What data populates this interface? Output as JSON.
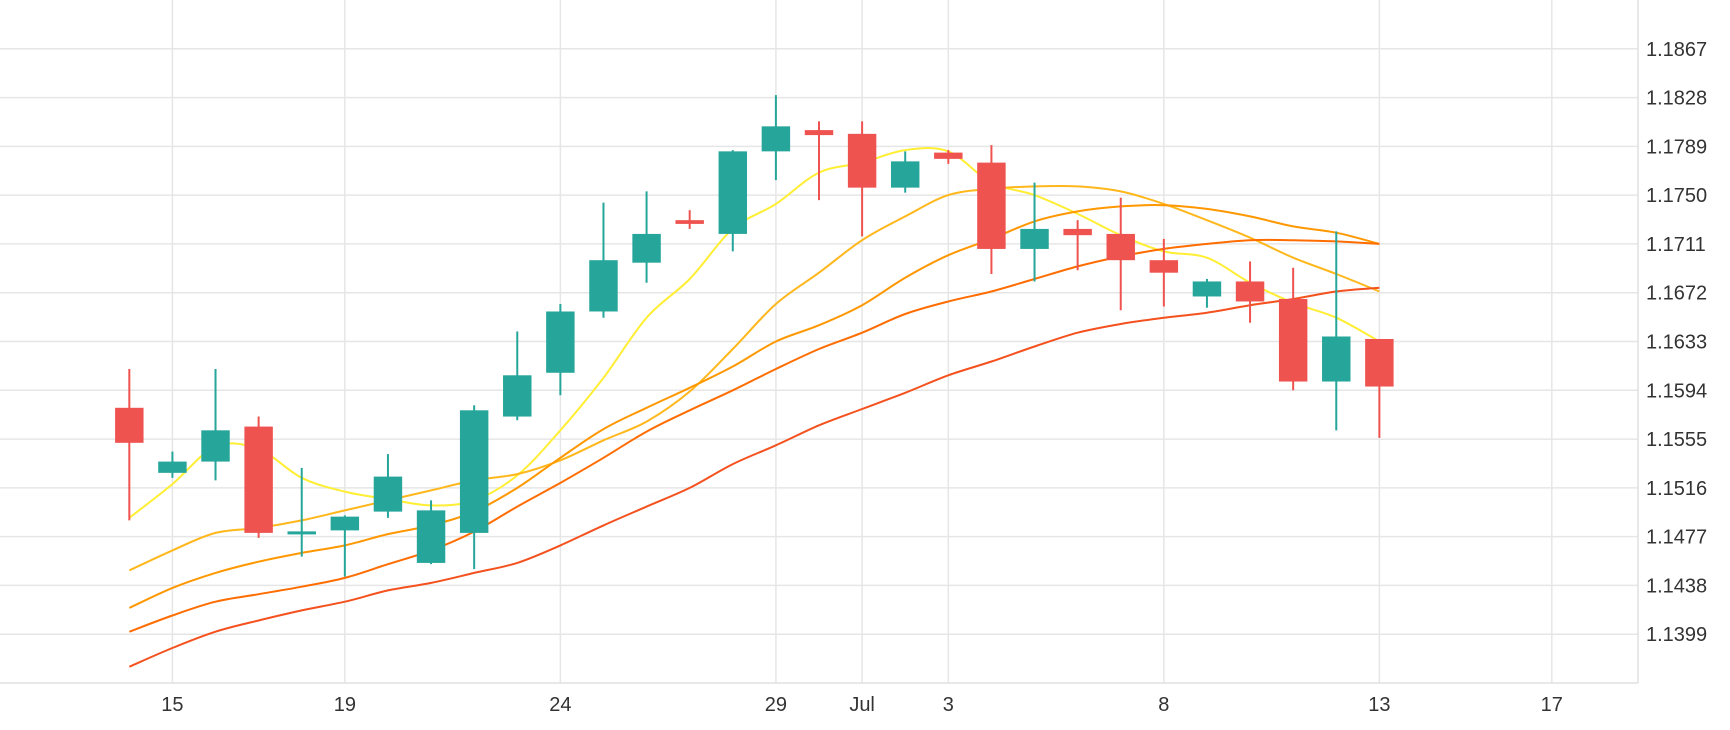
{
  "chart_data": {
    "type": "candlestick",
    "title": "",
    "xlabel": "",
    "ylabel": "",
    "x_tick_labels": [
      {
        "label": "15",
        "date": "2025-06-15"
      },
      {
        "label": "19",
        "date": "2025-06-19"
      },
      {
        "label": "24",
        "date": "2025-06-24"
      },
      {
        "label": "29",
        "date": "2025-06-29"
      },
      {
        "label": "Jul",
        "date": "2025-07-01"
      },
      {
        "label": "3",
        "date": "2025-07-03"
      },
      {
        "label": "8",
        "date": "2025-07-08"
      },
      {
        "label": "13",
        "date": "2025-07-13"
      },
      {
        "label": "17",
        "date": "2025-07-17"
      }
    ],
    "y_tick_labels": [
      "1.1867",
      "1.1828",
      "1.1789",
      "1.1750",
      "1.1711",
      "1.1672",
      "1.1633",
      "1.1594",
      "1.1555",
      "1.1516",
      "1.1477",
      "1.1438",
      "1.1399"
    ],
    "ylim": [
      1.136,
      1.1906
    ],
    "xlim": [
      "2025-06-11",
      "2025-07-19"
    ],
    "grid": true,
    "y_axis_position": "right",
    "colors": {
      "up": "#26a69a",
      "down": "#ef5350",
      "grid": "#e6e6e6",
      "text": "#333333"
    },
    "candles": [
      {
        "date": "2025-06-14",
        "open": 1.158,
        "high": 1.1611,
        "low": 1.149,
        "close": 1.1552
      },
      {
        "date": "2025-06-15",
        "open": 1.1528,
        "high": 1.1545,
        "low": 1.1524,
        "close": 1.1537
      },
      {
        "date": "2025-06-16",
        "open": 1.1537,
        "high": 1.1611,
        "low": 1.1522,
        "close": 1.1562
      },
      {
        "date": "2025-06-17",
        "open": 1.1565,
        "high": 1.1573,
        "low": 1.1476,
        "close": 1.148
      },
      {
        "date": "2025-06-18",
        "open": 1.148,
        "high": 1.1532,
        "low": 1.1461,
        "close": 1.148
      },
      {
        "date": "2025-06-19",
        "open": 1.1482,
        "high": 1.1494,
        "low": 1.1445,
        "close": 1.1493
      },
      {
        "date": "2025-06-20",
        "open": 1.1497,
        "high": 1.1543,
        "low": 1.1492,
        "close": 1.1525
      },
      {
        "date": "2025-06-21",
        "open": 1.1456,
        "high": 1.1506,
        "low": 1.1455,
        "close": 1.1498
      },
      {
        "date": "2025-06-22",
        "open": 1.148,
        "high": 1.1582,
        "low": 1.1451,
        "close": 1.1578
      },
      {
        "date": "2025-06-23",
        "open": 1.1573,
        "high": 1.1641,
        "low": 1.157,
        "close": 1.1606
      },
      {
        "date": "2025-06-24",
        "open": 1.1608,
        "high": 1.1663,
        "low": 1.159,
        "close": 1.1657
      },
      {
        "date": "2025-06-25",
        "open": 1.1657,
        "high": 1.1744,
        "low": 1.1652,
        "close": 1.1698
      },
      {
        "date": "2025-06-26",
        "open": 1.1696,
        "high": 1.1753,
        "low": 1.168,
        "close": 1.1719
      },
      {
        "date": "2025-06-27",
        "open": 1.173,
        "high": 1.1738,
        "low": 1.1723,
        "close": 1.1727
      },
      {
        "date": "2025-06-28",
        "open": 1.1719,
        "high": 1.1786,
        "low": 1.1705,
        "close": 1.1785
      },
      {
        "date": "2025-06-29",
        "open": 1.1785,
        "high": 1.183,
        "low": 1.1762,
        "close": 1.1805
      },
      {
        "date": "2025-06-30",
        "open": 1.1802,
        "high": 1.1809,
        "low": 1.1746,
        "close": 1.1798
      },
      {
        "date": "2025-07-01",
        "open": 1.1799,
        "high": 1.1809,
        "low": 1.1717,
        "close": 1.1756
      },
      {
        "date": "2025-07-02",
        "open": 1.1756,
        "high": 1.1785,
        "low": 1.1752,
        "close": 1.1777
      },
      {
        "date": "2025-07-03",
        "open": 1.1784,
        "high": 1.1786,
        "low": 1.1775,
        "close": 1.1779
      },
      {
        "date": "2025-07-04",
        "open": 1.1776,
        "high": 1.179,
        "low": 1.1687,
        "close": 1.1707
      },
      {
        "date": "2025-07-05",
        "open": 1.1707,
        "high": 1.176,
        "low": 1.1681,
        "close": 1.1723
      },
      {
        "date": "2025-07-06",
        "open": 1.1723,
        "high": 1.173,
        "low": 1.169,
        "close": 1.1718
      },
      {
        "date": "2025-07-07",
        "open": 1.1719,
        "high": 1.1748,
        "low": 1.1658,
        "close": 1.1698
      },
      {
        "date": "2025-07-08",
        "open": 1.1698,
        "high": 1.1715,
        "low": 1.1661,
        "close": 1.1688
      },
      {
        "date": "2025-07-09",
        "open": 1.1669,
        "high": 1.1683,
        "low": 1.166,
        "close": 1.1681
      },
      {
        "date": "2025-07-10",
        "open": 1.1681,
        "high": 1.1697,
        "low": 1.1648,
        "close": 1.1665
      },
      {
        "date": "2025-07-11",
        "open": 1.1667,
        "high": 1.1692,
        "low": 1.1594,
        "close": 1.1601
      },
      {
        "date": "2025-07-12",
        "open": 1.1601,
        "high": 1.1721,
        "low": 1.1562,
        "close": 1.1637
      },
      {
        "date": "2025-07-13",
        "open": 1.1635,
        "high": 1.1635,
        "low": 1.1556,
        "close": 1.1597
      }
    ],
    "moving_averages": [
      {
        "color": "#ffee33",
        "points": [
          [
            "2025-06-14",
            1.1492
          ],
          [
            "2025-06-15",
            1.1519
          ],
          [
            "2025-06-16",
            1.1549
          ],
          [
            "2025-06-17",
            1.1547
          ],
          [
            "2025-06-18",
            1.1524
          ],
          [
            "2025-06-19",
            1.1513
          ],
          [
            "2025-06-20",
            1.1507
          ],
          [
            "2025-06-21",
            1.1502
          ],
          [
            "2025-06-22",
            1.1506
          ],
          [
            "2025-06-23",
            1.1526
          ],
          [
            "2025-06-24",
            1.1562
          ],
          [
            "2025-06-25",
            1.1604
          ],
          [
            "2025-06-26",
            1.1652
          ],
          [
            "2025-06-27",
            1.1683
          ],
          [
            "2025-06-28",
            1.1723
          ],
          [
            "2025-06-29",
            1.1743
          ],
          [
            "2025-06-30",
            1.1768
          ],
          [
            "2025-07-01",
            1.1776
          ],
          [
            "2025-07-02",
            1.1786
          ],
          [
            "2025-07-03",
            1.1785
          ],
          [
            "2025-07-04",
            1.176
          ],
          [
            "2025-07-05",
            1.175
          ],
          [
            "2025-07-06",
            1.1735
          ],
          [
            "2025-07-07",
            1.1718
          ],
          [
            "2025-07-08",
            1.1705
          ],
          [
            "2025-07-09",
            1.17
          ],
          [
            "2025-07-10",
            1.168
          ],
          [
            "2025-07-11",
            1.1664
          ],
          [
            "2025-07-12",
            1.1652
          ],
          [
            "2025-07-13",
            1.1633
          ]
        ]
      },
      {
        "color": "#ffb71b",
        "points": [
          [
            "2025-06-14",
            1.145
          ],
          [
            "2025-06-15",
            1.1466
          ],
          [
            "2025-06-16",
            1.148
          ],
          [
            "2025-06-17",
            1.1484
          ],
          [
            "2025-06-18",
            1.149
          ],
          [
            "2025-06-19",
            1.1498
          ],
          [
            "2025-06-20",
            1.1506
          ],
          [
            "2025-06-21",
            1.1514
          ],
          [
            "2025-06-22",
            1.1522
          ],
          [
            "2025-06-23",
            1.1527
          ],
          [
            "2025-06-24",
            1.1538
          ],
          [
            "2025-06-25",
            1.1554
          ],
          [
            "2025-06-26",
            1.1569
          ],
          [
            "2025-06-27",
            1.1593
          ],
          [
            "2025-06-28",
            1.1627
          ],
          [
            "2025-06-29",
            1.1663
          ],
          [
            "2025-06-30",
            1.1688
          ],
          [
            "2025-07-01",
            1.1714
          ],
          [
            "2025-07-02",
            1.1733
          ],
          [
            "2025-07-03",
            1.175
          ],
          [
            "2025-07-04",
            1.1755
          ],
          [
            "2025-07-05",
            1.1757
          ],
          [
            "2025-07-06",
            1.1757
          ],
          [
            "2025-07-07",
            1.1753
          ],
          [
            "2025-07-08",
            1.1743
          ],
          [
            "2025-07-09",
            1.173
          ],
          [
            "2025-07-10",
            1.1716
          ],
          [
            "2025-07-11",
            1.17
          ],
          [
            "2025-07-12",
            1.1687
          ],
          [
            "2025-07-13",
            1.1673
          ]
        ]
      },
      {
        "color": "#ff9800",
        "points": [
          [
            "2025-06-14",
            1.142
          ],
          [
            "2025-06-15",
            1.1436
          ],
          [
            "2025-06-16",
            1.1448
          ],
          [
            "2025-06-17",
            1.1457
          ],
          [
            "2025-06-18",
            1.1464
          ],
          [
            "2025-06-19",
            1.147
          ],
          [
            "2025-06-20",
            1.1479
          ],
          [
            "2025-06-21",
            1.1486
          ],
          [
            "2025-06-22",
            1.1497
          ],
          [
            "2025-06-23",
            1.1516
          ],
          [
            "2025-06-24",
            1.154
          ],
          [
            "2025-06-25",
            1.1563
          ],
          [
            "2025-06-26",
            1.158
          ],
          [
            "2025-06-27",
            1.1596
          ],
          [
            "2025-06-28",
            1.1613
          ],
          [
            "2025-06-29",
            1.1633
          ],
          [
            "2025-06-30",
            1.1646
          ],
          [
            "2025-07-01",
            1.1662
          ],
          [
            "2025-07-02",
            1.1684
          ],
          [
            "2025-07-03",
            1.1702
          ],
          [
            "2025-07-04",
            1.1715
          ],
          [
            "2025-07-05",
            1.1729
          ],
          [
            "2025-07-06",
            1.1737
          ],
          [
            "2025-07-07",
            1.1741
          ],
          [
            "2025-07-08",
            1.1742
          ],
          [
            "2025-07-09",
            1.1739
          ],
          [
            "2025-07-10",
            1.1733
          ],
          [
            "2025-07-11",
            1.1725
          ],
          [
            "2025-07-12",
            1.172
          ],
          [
            "2025-07-13",
            1.1711
          ]
        ]
      },
      {
        "color": "#ff6d00",
        "points": [
          [
            "2025-06-14",
            1.1401
          ],
          [
            "2025-06-15",
            1.1414
          ],
          [
            "2025-06-16",
            1.1425
          ],
          [
            "2025-06-17",
            1.1431
          ],
          [
            "2025-06-18",
            1.1437
          ],
          [
            "2025-06-19",
            1.1444
          ],
          [
            "2025-06-20",
            1.1455
          ],
          [
            "2025-06-21",
            1.1466
          ],
          [
            "2025-06-22",
            1.1481
          ],
          [
            "2025-06-23",
            1.1501
          ],
          [
            "2025-06-24",
            1.152
          ],
          [
            "2025-06-25",
            1.154
          ],
          [
            "2025-06-26",
            1.1561
          ],
          [
            "2025-06-27",
            1.1578
          ],
          [
            "2025-06-28",
            1.1594
          ],
          [
            "2025-06-29",
            1.1611
          ],
          [
            "2025-06-30",
            1.1627
          ],
          [
            "2025-07-01",
            1.164
          ],
          [
            "2025-07-02",
            1.1655
          ],
          [
            "2025-07-03",
            1.1665
          ],
          [
            "2025-07-04",
            1.1673
          ],
          [
            "2025-07-05",
            1.1683
          ],
          [
            "2025-07-06",
            1.1693
          ],
          [
            "2025-07-07",
            1.1701
          ],
          [
            "2025-07-08",
            1.1707
          ],
          [
            "2025-07-09",
            1.1711
          ],
          [
            "2025-07-10",
            1.1714
          ],
          [
            "2025-07-11",
            1.1714
          ],
          [
            "2025-07-12",
            1.1713
          ],
          [
            "2025-07-13",
            1.1711
          ]
        ]
      },
      {
        "color": "#f4511e",
        "points": [
          [
            "2025-06-14",
            1.1373
          ],
          [
            "2025-06-15",
            1.1388
          ],
          [
            "2025-06-16",
            1.1401
          ],
          [
            "2025-06-17",
            1.141
          ],
          [
            "2025-06-18",
            1.1418
          ],
          [
            "2025-06-19",
            1.1425
          ],
          [
            "2025-06-20",
            1.1434
          ],
          [
            "2025-06-21",
            1.144
          ],
          [
            "2025-06-22",
            1.1448
          ],
          [
            "2025-06-23",
            1.1456
          ],
          [
            "2025-06-24",
            1.147
          ],
          [
            "2025-06-25",
            1.1486
          ],
          [
            "2025-06-26",
            1.1501
          ],
          [
            "2025-06-27",
            1.1516
          ],
          [
            "2025-06-28",
            1.1535
          ],
          [
            "2025-06-29",
            1.155
          ],
          [
            "2025-06-30",
            1.1566
          ],
          [
            "2025-07-01",
            1.1579
          ],
          [
            "2025-07-02",
            1.1592
          ],
          [
            "2025-07-03",
            1.1606
          ],
          [
            "2025-07-04",
            1.1617
          ],
          [
            "2025-07-05",
            1.1629
          ],
          [
            "2025-07-06",
            1.164
          ],
          [
            "2025-07-07",
            1.1647
          ],
          [
            "2025-07-08",
            1.1652
          ],
          [
            "2025-07-09",
            1.1656
          ],
          [
            "2025-07-10",
            1.1662
          ],
          [
            "2025-07-11",
            1.1667
          ],
          [
            "2025-07-12",
            1.1673
          ],
          [
            "2025-07-13",
            1.1676
          ]
        ]
      }
    ]
  }
}
